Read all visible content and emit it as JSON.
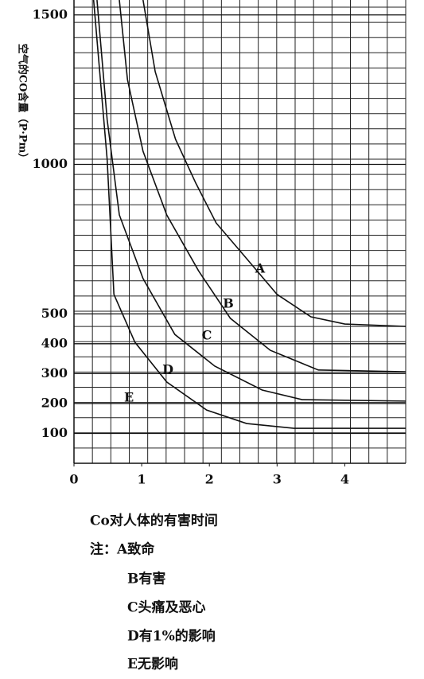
{
  "chart_data": {
    "type": "line",
    "y_label": "空气的CO含量（P·Pm）",
    "xlim": [
      0,
      4.9
    ],
    "ylim": [
      0,
      1550
    ],
    "xticks": [
      0,
      1,
      2,
      3,
      4
    ],
    "yticks": [
      100,
      200,
      300,
      400,
      500,
      1000,
      1500
    ],
    "grid": true,
    "color": "#111111",
    "series": [
      {
        "name": "A",
        "x": [
          1.02,
          1.2,
          1.5,
          1.8,
          2.1,
          2.5,
          3.0,
          3.5,
          4.0,
          4.9
        ],
        "values": [
          1550,
          1310,
          1084,
          937,
          804,
          698,
          565,
          490,
          466,
          458
        ]
      },
      {
        "name": "B",
        "x": [
          0.67,
          0.79,
          1.02,
          1.37,
          1.84,
          2.31,
          2.9,
          3.61,
          4.9
        ],
        "values": [
          1550,
          1284,
          1044,
          831,
          644,
          485,
          378,
          312,
          306
        ]
      },
      {
        "name": "C",
        "x": [
          0.34,
          0.49,
          0.67,
          1.02,
          1.49,
          2.08,
          2.78,
          3.37,
          4.9
        ],
        "values": [
          1550,
          1150,
          831,
          618,
          431,
          325,
          245,
          213,
          208
        ]
      },
      {
        "name": "D",
        "x": [
          0.29,
          0.49,
          0.59,
          0.9,
          1.37,
          1.96,
          2.55,
          3.25,
          4.9
        ],
        "values": [
          1550,
          1017,
          565,
          405,
          272,
          178,
          133,
          117,
          117
        ]
      }
    ],
    "annotations": [
      "E"
    ],
    "caption": "Co对人体的有害时间",
    "notes": [
      "注：A致命",
      "B有害",
      "C头痛及恶心",
      "D有1%的影响",
      "E无影响"
    ]
  }
}
